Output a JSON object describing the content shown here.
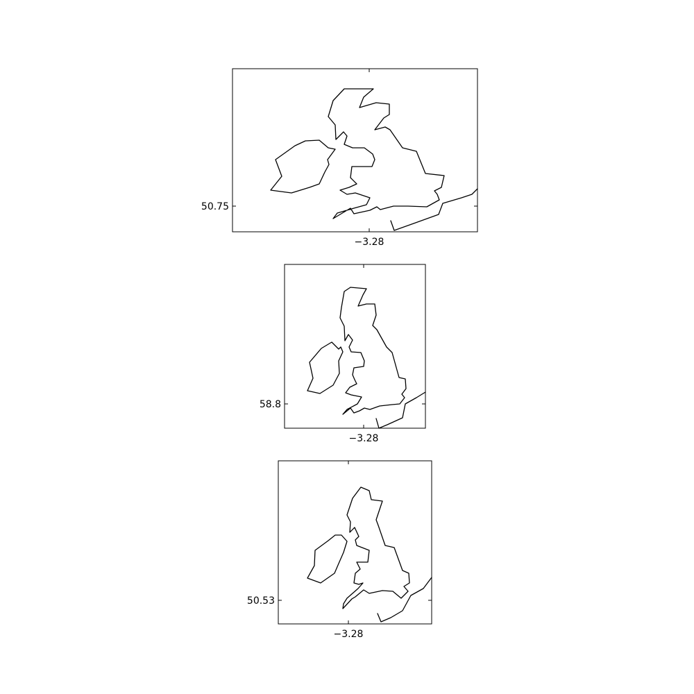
{
  "figure": {
    "panels": [
      {
        "id": "top",
        "projection": "wide",
        "x_tick_label": "−3.28",
        "y_tick_label": "50.75"
      },
      {
        "id": "middle",
        "projection": "narrow",
        "x_tick_label": "−3.28",
        "y_tick_label": "58.8"
      },
      {
        "id": "bottom",
        "projection": "square",
        "x_tick_label": "−3.28",
        "y_tick_label": "50.53"
      }
    ],
    "line_color": "#000000",
    "background": "#ffffff"
  }
}
